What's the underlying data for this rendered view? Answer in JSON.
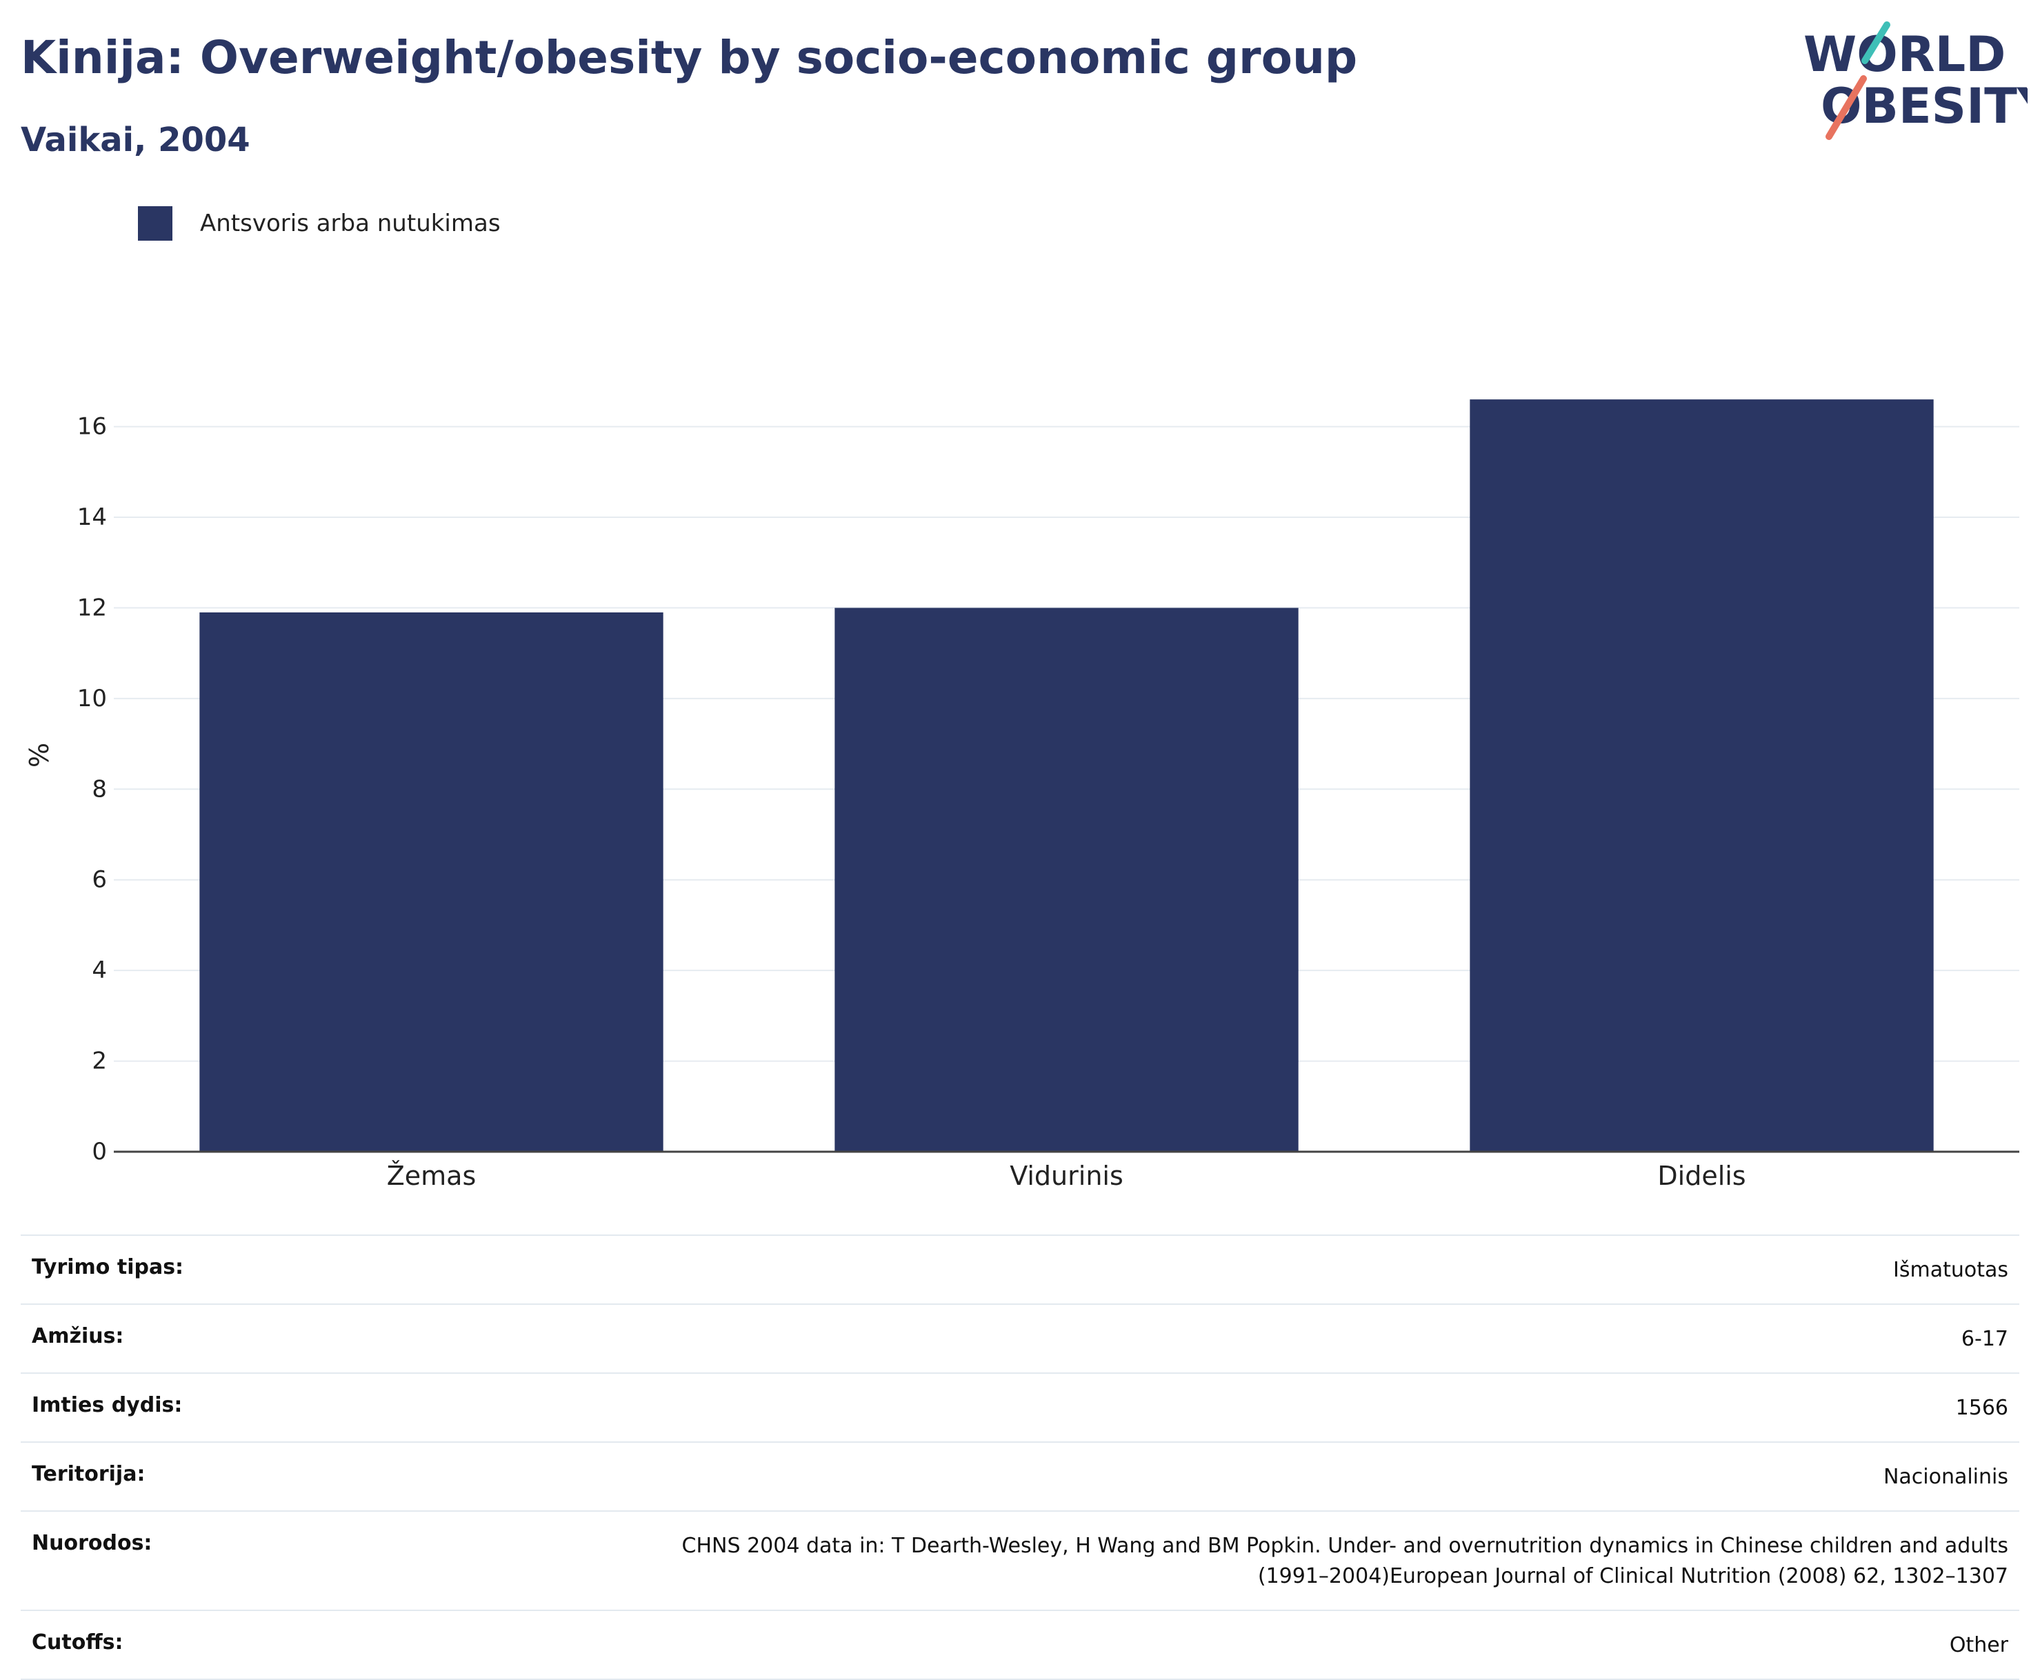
{
  "header": {
    "title": "Kinija: Overweight/obesity by socio-economic group",
    "subtitle": "Vaikai, 2004"
  },
  "logo": {
    "line1": "WORLD",
    "line2": "OBESITY"
  },
  "colors": {
    "bar": "#2a3663",
    "accent_teal": "#3fbfb7",
    "accent_coral": "#e8735f",
    "grid": "#e6ebf0"
  },
  "chart_data": {
    "type": "bar",
    "categories": [
      "Žemas",
      "Vidurinis",
      "Didelis"
    ],
    "series": [
      {
        "name": "Antsvoris arba nutukimas",
        "values": [
          11.9,
          12.0,
          16.6
        ]
      }
    ],
    "title": "Kinija: Overweight/obesity by socio-economic group",
    "subtitle": "Vaikai, 2004",
    "xlabel": "",
    "ylabel": "%",
    "ylim": [
      0,
      17.5
    ],
    "yticks": [
      0,
      2,
      4,
      6,
      8,
      10,
      12,
      14,
      16
    ],
    "grid": true,
    "legend": "top-left"
  },
  "details": [
    {
      "label": "Tyrimo tipas:",
      "value": "Išmatuotas"
    },
    {
      "label": "Amžius:",
      "value": "6-17"
    },
    {
      "label": "Imties dydis:",
      "value": "1566"
    },
    {
      "label": "Teritorija:",
      "value": "Nacionalinis"
    },
    {
      "label": "Nuorodos:",
      "value_lines": [
        "CHNS 2004 data in: T Dearth-Wesley, H Wang and BM Popkin. Under- and overnutrition dynamics in Chinese children and adults",
        "(1991–2004)European Journal of Clinical Nutrition (2008) 62, 1302–1307"
      ]
    },
    {
      "label": "Cutoffs:",
      "value": "Other"
    }
  ]
}
